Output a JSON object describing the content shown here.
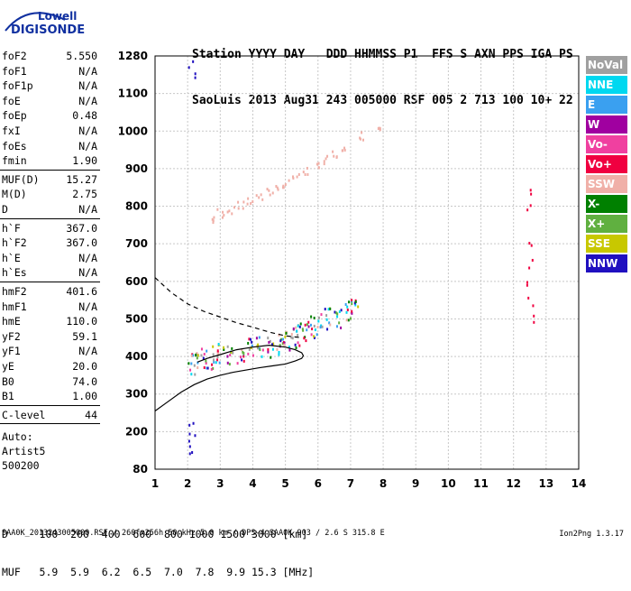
{
  "logo": {
    "line1": "Lowell",
    "line2": "DIGISONDE"
  },
  "header": {
    "line1": "Station YYYY DAY   DDD HHMMSS P1  FFS S AXN PPS IGA PS",
    "line2": "SaoLuis 2013 Aug31 243 005000 RSF 005 2 713 100 10+ 22"
  },
  "params_group1": [
    {
      "label": "foF2",
      "value": "5.550"
    },
    {
      "label": "foF1",
      "value": "N/A"
    },
    {
      "label": "foF1p",
      "value": "N/A"
    },
    {
      "label": "foE",
      "value": "N/A"
    },
    {
      "label": "foEp",
      "value": "0.48"
    },
    {
      "label": "fxI",
      "value": "N/A"
    },
    {
      "label": "foEs",
      "value": "N/A"
    },
    {
      "label": "fmin",
      "value": "1.90"
    }
  ],
  "params_group2": [
    {
      "label": "MUF(D)",
      "value": "15.27"
    },
    {
      "label": "M(D)",
      "value": "2.75"
    },
    {
      "label": "D",
      "value": "N/A"
    }
  ],
  "params_group3": [
    {
      "label": "h`F",
      "value": "367.0"
    },
    {
      "label": "h`F2",
      "value": "367.0"
    },
    {
      "label": "h`E",
      "value": "N/A"
    },
    {
      "label": "h`Es",
      "value": "N/A"
    }
  ],
  "params_group4": [
    {
      "label": "hmF2",
      "value": "401.6"
    },
    {
      "label": "hmF1",
      "value": "N/A"
    },
    {
      "label": "hmE",
      "value": "110.0"
    },
    {
      "label": "yF2",
      "value": "59.1"
    },
    {
      "label": "yF1",
      "value": "N/A"
    },
    {
      "label": "yE",
      "value": "20.0"
    },
    {
      "label": "B0",
      "value": "74.0"
    },
    {
      "label": "B1",
      "value": "1.00"
    }
  ],
  "params_group5": [
    {
      "label": "C-level",
      "value": "44"
    }
  ],
  "auto": {
    "line1": "Auto:",
    "line2": "Artist5",
    "line3": "500200"
  },
  "legend": [
    {
      "label": "NoVal",
      "color": "#a0a0a0"
    },
    {
      "label": "NNE",
      "color": "#00d8f0"
    },
    {
      "label": "E",
      "color": "#3aa0f0"
    },
    {
      "label": "W",
      "color": "#a000a0"
    },
    {
      "label": "Vo-",
      "color": "#f040a0"
    },
    {
      "label": "Vo+",
      "color": "#f00040"
    },
    {
      "label": "SSW",
      "color": "#f0b0a8"
    },
    {
      "label": "X-",
      "color": "#008000"
    },
    {
      "label": "X+",
      "color": "#60b040"
    },
    {
      "label": "SSE",
      "color": "#c8c800"
    },
    {
      "label": "NNW",
      "color": "#2010c0"
    }
  ],
  "footer": {
    "line1": "D     100  200  400  600  800 1000 1500 3000 [km]",
    "line2": "MUF   5.9  5.9  6.2  6.5  7.0  7.8  9.9 15.3 [MHz]"
  },
  "bottom_line": "SAA0K_2013243005000.RSF / 260fx256h 50 kHz 5.0 km / DPS-4 SAA0K 903 / 2.6 S 315.8 E",
  "version": "Ion2Png 1.3.17",
  "chart_data": {
    "type": "scatter",
    "x_ticks": [
      1,
      2,
      3,
      4,
      5,
      6,
      7,
      8,
      9,
      10,
      11,
      12,
      13,
      14
    ],
    "y_ticks": [
      80,
      200,
      300,
      400,
      500,
      600,
      700,
      800,
      900,
      1000,
      1100,
      1280
    ],
    "xlim": [
      1,
      14
    ],
    "grid": true,
    "traces": [
      {
        "x": [
          2.1,
          2.3,
          2.5,
          2.8,
          3.0,
          3.3,
          3.6,
          3.9,
          4.2,
          4.5,
          4.8,
          5.0,
          5.2,
          5.4,
          5.6,
          5.8,
          6.0,
          6.3,
          6.6,
          6.9,
          7.1
        ],
        "y": [
          385,
          390,
          395,
          400,
          405,
          410,
          415,
          420,
          425,
          430,
          435,
          440,
          450,
          460,
          470,
          480,
          490,
          500,
          510,
          520,
          530
        ]
      },
      {
        "x": [
          2.7,
          3.0,
          3.3,
          3.6,
          3.9,
          4.2,
          4.5,
          4.8,
          5.0,
          5.3,
          5.6,
          5.9,
          6.2,
          6.5,
          6.8,
          7.3,
          7.9
        ],
        "y": [
          770,
          785,
          795,
          805,
          815,
          825,
          840,
          850,
          865,
          880,
          895,
          910,
          925,
          940,
          960,
          990,
          1010
        ]
      },
      {
        "x": [
          12.5,
          12.5,
          12.5,
          12.5,
          12.5,
          12.5,
          12.5
        ],
        "y": [
          500,
          550,
          600,
          650,
          700,
          800,
          840
        ]
      },
      {
        "x": [
          2.1,
          2.1,
          2.1,
          2.1,
          2.1,
          2.1
        ],
        "y": [
          130,
          160,
          190,
          220,
          1200,
          1240
        ]
      }
    ],
    "profile_solid": {
      "x": [
        1.0,
        1.4,
        1.8,
        2.2,
        2.6,
        3.0,
        3.4,
        3.8,
        4.2,
        4.6,
        5.0,
        5.3,
        5.5,
        5.55,
        5.5,
        5.3,
        5.0,
        4.5,
        4.0,
        3.5,
        3.0,
        2.6,
        2.3
      ],
      "y": [
        255,
        280,
        305,
        325,
        340,
        350,
        358,
        364,
        370,
        375,
        380,
        388,
        395,
        402,
        410,
        418,
        425,
        430,
        425,
        418,
        405,
        395,
        385
      ]
    },
    "profile_dashed": {
      "x": [
        1.0,
        1.5,
        2.0,
        2.5,
        3.0,
        3.5,
        4.0,
        4.5,
        5.0,
        5.5
      ],
      "y": [
        610,
        570,
        540,
        520,
        505,
        490,
        478,
        465,
        455,
        450
      ]
    }
  }
}
